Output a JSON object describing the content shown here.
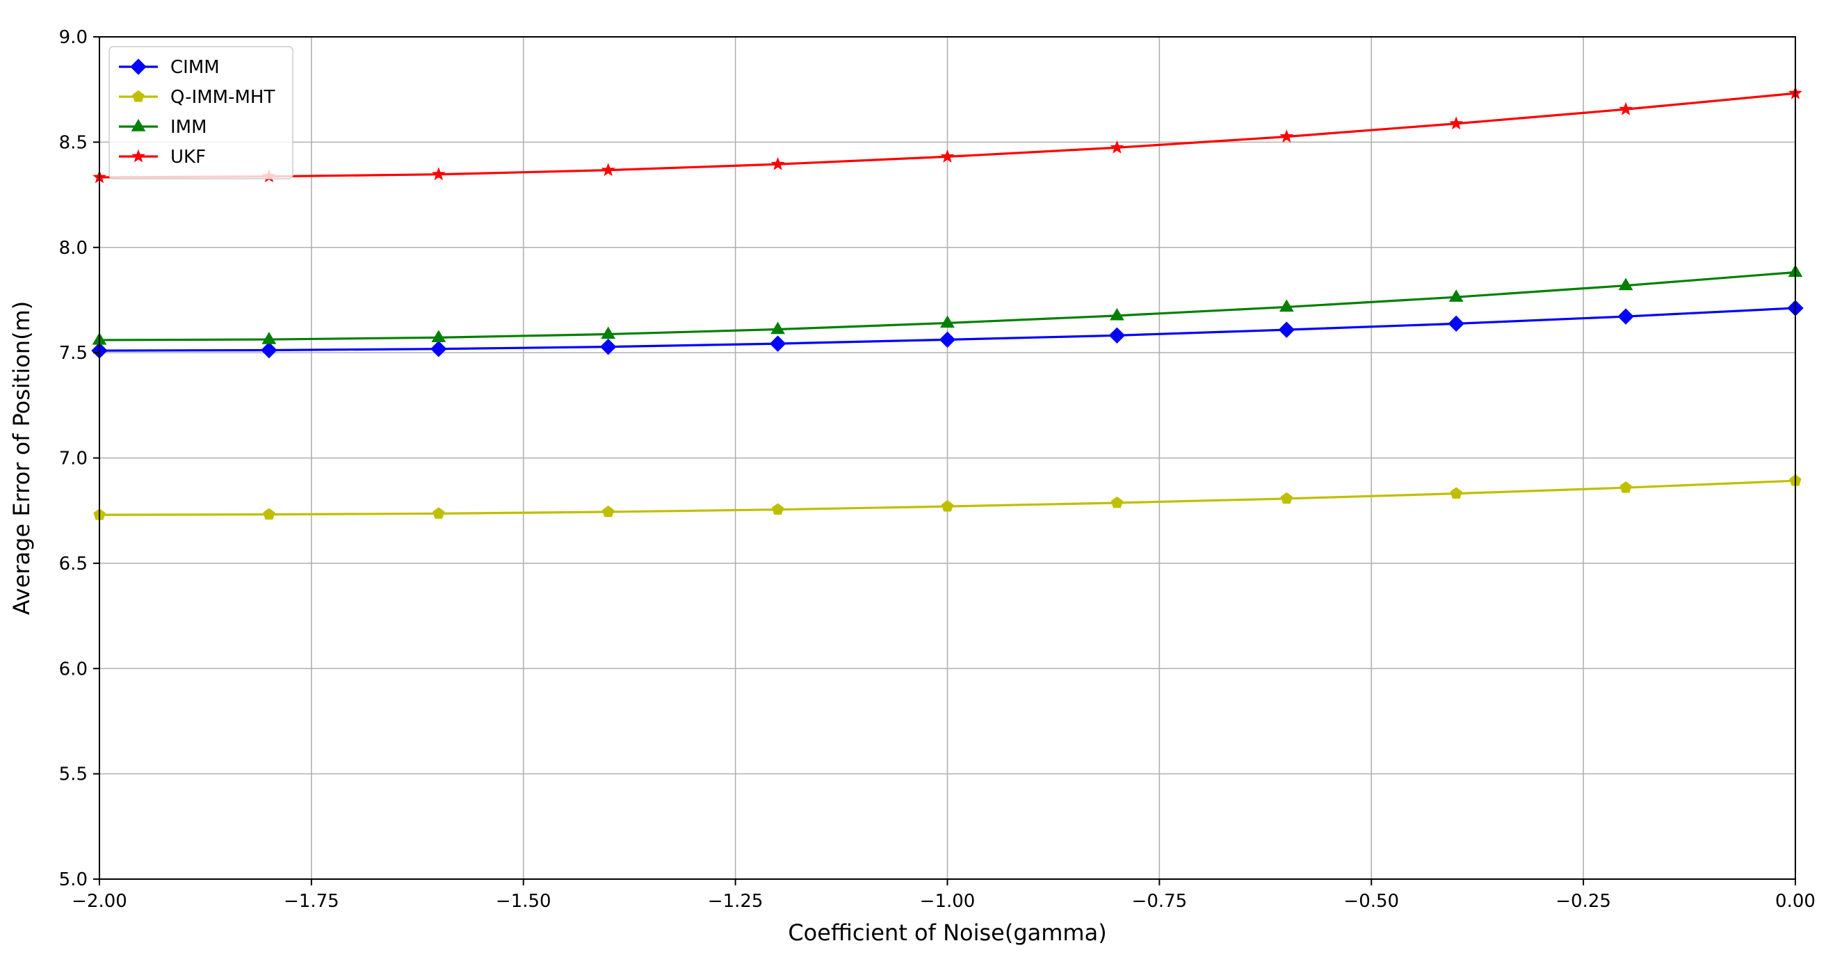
{
  "chart_data": {
    "type": "line",
    "xlabel": "Coefficient of Noise(gamma)",
    "ylabel": "Average Error of Position(m)",
    "xlim": [
      -2.0,
      0.0
    ],
    "ylim": [
      5.0,
      9.0
    ],
    "xticks": [
      -2.0,
      -1.75,
      -1.5,
      -1.25,
      -1.0,
      -0.75,
      -0.5,
      -0.25,
      0.0
    ],
    "xtick_labels": [
      "−2.00",
      "−1.75",
      "−1.50",
      "−1.25",
      "−1.00",
      "−0.75",
      "−0.50",
      "−0.25",
      "0.00"
    ],
    "yticks": [
      5.0,
      5.5,
      6.0,
      6.5,
      7.0,
      7.5,
      8.0,
      8.5,
      9.0
    ],
    "ytick_labels": [
      "5.0",
      "5.5",
      "6.0",
      "6.5",
      "7.0",
      "7.5",
      "8.0",
      "8.5",
      "9.0"
    ],
    "grid": true,
    "legend_position": "top-left",
    "x": [
      -2.0,
      -1.8,
      -1.6,
      -1.4,
      -1.2,
      -1.0,
      -0.8,
      -0.6,
      -0.4,
      -0.2,
      0.0
    ],
    "series": [
      {
        "name": "CIMM",
        "color": "#0000ff",
        "marker": "diamond",
        "values": [
          7.51,
          7.512,
          7.518,
          7.528,
          7.543,
          7.562,
          7.582,
          7.609,
          7.638,
          7.672,
          7.712
        ]
      },
      {
        "name": "Q-IMM-MHT",
        "color": "#bfbf00",
        "marker": "pentagon",
        "values": [
          6.73,
          6.732,
          6.736,
          6.744,
          6.755,
          6.77,
          6.787,
          6.807,
          6.831,
          6.859,
          6.892
        ]
      },
      {
        "name": "IMM",
        "color": "#008000",
        "marker": "triangle-up",
        "values": [
          7.56,
          7.563,
          7.572,
          7.588,
          7.611,
          7.641,
          7.676,
          7.717,
          7.764,
          7.819,
          7.882
        ]
      },
      {
        "name": "UKF",
        "color": "#ff0000",
        "marker": "star",
        "values": [
          8.333,
          8.337,
          8.347,
          8.367,
          8.395,
          8.431,
          8.474,
          8.526,
          8.588,
          8.656,
          8.732
        ]
      }
    ]
  }
}
